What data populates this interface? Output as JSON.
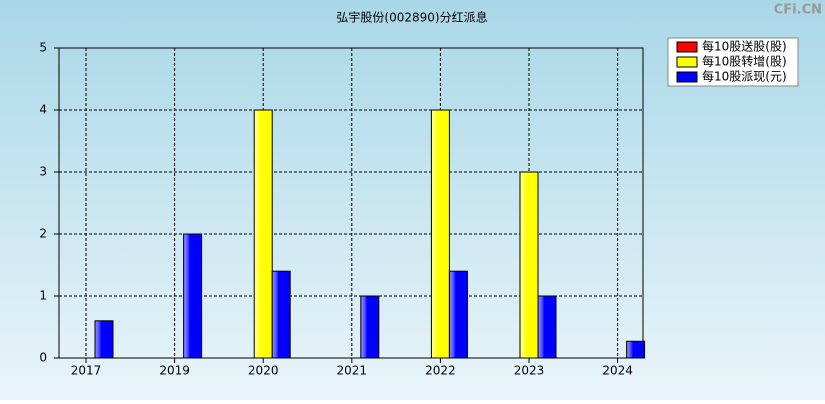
{
  "chart_data": {
    "type": "bar",
    "title": "弘宇股份(002890)分红派息",
    "watermark": "CFi.CN",
    "categories": [
      "2017",
      "2019",
      "2020",
      "2021",
      "2022",
      "2023",
      "2024"
    ],
    "series": [
      {
        "name": "每10股送股(股)",
        "color": "#ff0000",
        "values": [
          0,
          0,
          0,
          0,
          0,
          0,
          0
        ]
      },
      {
        "name": "每10股转增(股)",
        "color": "#ffff00",
        "values": [
          0,
          0,
          4,
          0,
          4,
          3,
          0
        ]
      },
      {
        "name": "每10股派现(元)",
        "color": "#0000ff",
        "values": [
          0.6,
          2,
          1.4,
          1,
          1.4,
          1,
          0.27
        ]
      }
    ],
    "ylim": [
      0,
      5
    ],
    "yticks": [
      0,
      1,
      2,
      3,
      4,
      5
    ],
    "grid": true,
    "legend": "top-right"
  }
}
